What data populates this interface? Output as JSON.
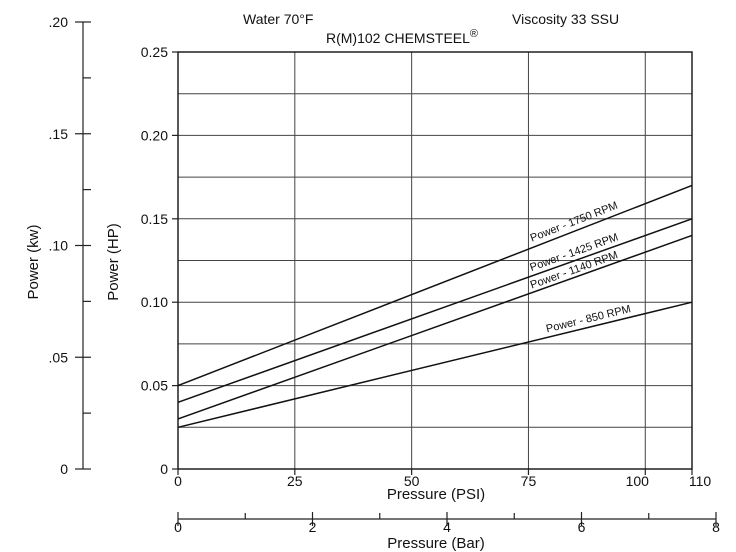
{
  "chart_data": {
    "type": "line",
    "header": {
      "condition": "Water 70°F",
      "viscosity": "Viscosity 33 SSU",
      "model": "R(M)102 CHEMSTEEL",
      "model_mark": "®"
    },
    "xlabel": "Pressure (PSI)",
    "xlim": [
      0,
      110
    ],
    "x_ticks": [
      "0",
      "25",
      "50",
      "75",
      "100",
      "110"
    ],
    "x_tick_values": [
      0,
      25,
      50,
      75,
      100,
      110
    ],
    "ylabel": "Power (HP)",
    "ylim": [
      0,
      0.25
    ],
    "y_ticks": [
      "0",
      "0.05",
      "0.10",
      "0.15",
      "0.20",
      "0.25"
    ],
    "y_tick_values": [
      0,
      0.05,
      0.1,
      0.15,
      0.2,
      0.25
    ],
    "grid": true,
    "secondary_x": {
      "label": "Pressure (Bar)",
      "ticks": [
        "0",
        "2",
        "4",
        "6",
        "8"
      ],
      "tick_values": [
        0,
        2,
        4,
        6,
        8
      ],
      "minor_tick_values": [
        1,
        3,
        5,
        7
      ],
      "range": [
        0,
        8
      ]
    },
    "secondary_y": {
      "label": "Power (kw)",
      "ticks": [
        "0",
        ".05",
        ".10",
        ".15",
        ".20"
      ],
      "tick_values": [
        0,
        0.05,
        0.1,
        0.15,
        0.2
      ],
      "minor_tick_values": [
        0.025,
        0.075,
        0.125,
        0.175
      ],
      "range": [
        0,
        0.2
      ]
    },
    "series": [
      {
        "name": "Power - 1750 RPM",
        "x": [
          0,
          110
        ],
        "values": [
          0.05,
          0.17
        ]
      },
      {
        "name": "Power - 1425 RPM",
        "x": [
          0,
          110
        ],
        "values": [
          0.04,
          0.15
        ]
      },
      {
        "name": "Power - 1140 RPM",
        "x": [
          0,
          110
        ],
        "values": [
          0.03,
          0.14
        ]
      },
      {
        "name": "Power - 850 RPM",
        "x": [
          0,
          110
        ],
        "values": [
          0.025,
          0.1
        ]
      }
    ]
  }
}
